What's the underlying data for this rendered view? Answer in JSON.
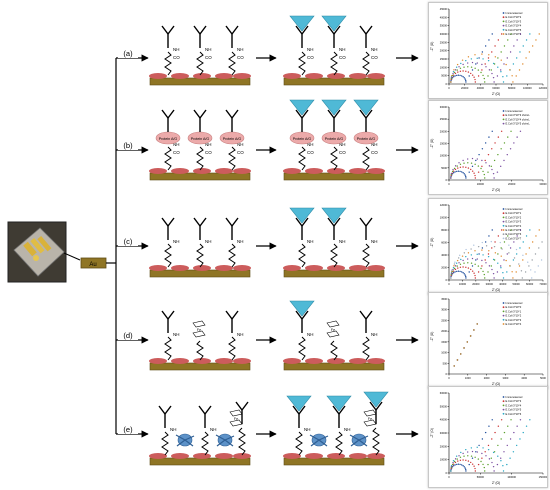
{
  "device": {
    "electrode_label": "Au"
  },
  "rows": [
    {
      "label": "(a)",
      "chem_labels": [
        "NH",
        "CO"
      ],
      "chart": {
        "type": "scatter",
        "xlabel": "Z' (Ω)",
        "ylabel": "-Z'' (Ω)",
        "xticks": [
          "0",
          "20000",
          "40000",
          "60000",
          "80000",
          "100000",
          "120000"
        ],
        "yticks": [
          "0",
          "5000",
          "10000",
          "15000",
          "20000",
          "25000",
          "30000",
          "35000",
          "40000",
          "45000"
        ],
        "legend": [
          "Immunosensor",
          "E.Coli 3*10^2",
          "E.Coli 3*10^3",
          "E.Coli 3*10^4",
          "E.Coli 3*10^5",
          "E.Coli 3*10^6"
        ]
      }
    },
    {
      "label": "(b)",
      "chem_labels": [
        "NH",
        "CO"
      ],
      "protein_label": "Protein A/G",
      "chart": {
        "type": "scatter",
        "xlabel": "Z' (Ω)",
        "ylabel": "-Z'' (Ω)",
        "xticks": [
          "0",
          "10000",
          "20000",
          "30000"
        ],
        "yticks": [
          "0",
          "5000",
          "10000",
          "15000",
          "20000",
          "25000",
          "30000"
        ],
        "legend": [
          "Immunosensor",
          "E.Coli 3*10^3 cfu/mL",
          "E.Coli 3*10^4 cfu/mL",
          "E.Coli 3*10^5 cfu/mL"
        ]
      }
    },
    {
      "label": "(c)",
      "chem_labels": [
        "NH"
      ],
      "chart": {
        "type": "scatter",
        "xlabel": "Z' (Ω)",
        "ylabel": "-Z'' (Ω)",
        "xticks": [
          "0",
          "10000",
          "20000",
          "30000",
          "40000",
          "50000",
          "60000",
          "70000"
        ],
        "yticks": [
          "0",
          "2000",
          "4000",
          "6000",
          "8000",
          "10000",
          "12000"
        ],
        "legend": [
          "Immunosensor",
          "E.Coli 3*10^1",
          "E.Coli 3*10^2",
          "E.Coli 3*10^3",
          "E.Coli 3*10^4",
          "E.Coli 3*10^5",
          "E.Coli 3*10^6",
          "E.Coli 3*10^7"
        ]
      }
    },
    {
      "label": "(d)",
      "chem_labels": [
        "NH",
        "Fe"
      ],
      "chart": {
        "type": "scatter",
        "xlabel": "Z' (Ω)",
        "ylabel": "-Z'' (Ω)",
        "xticks": [
          "0",
          "1000",
          "2000",
          "3000",
          "4000",
          "5000"
        ],
        "yticks": [
          "0",
          "500",
          "1000",
          "1500",
          "2000",
          "2500",
          "3000",
          "3500"
        ],
        "legend": [
          "Immunosensor",
          "E.Coli 3*10^0",
          "E.Coli 3*10^1",
          "E.Coli 3*10^2",
          "E.Coli 3*10^3",
          "E.Coli 3*10^4"
        ]
      }
    },
    {
      "label": "(e)",
      "chem_labels": [
        "NH",
        "Fe"
      ],
      "chart": {
        "type": "scatter",
        "xlabel": "Z' (Ω)",
        "ylabel": "-Z'' (Ω)",
        "xticks": [
          "0",
          "50000",
          "100000",
          "150000"
        ],
        "yticks": [
          "0",
          "10000",
          "20000",
          "30000",
          "40000",
          "50000",
          "60000"
        ],
        "legend": [
          "Immunosensor",
          "E.Coli 3*10^3",
          "E.Coli 3*10^4",
          "E.Coli 3*10^5",
          "E.Coli 3*10^6"
        ]
      }
    }
  ],
  "colors": {
    "gold_substrate": "#8f7525",
    "gold_edge": "#5e4c14",
    "nanoparticle": "#cc5c5c",
    "protein": "#ecaaaa",
    "antigen": "#4fb9d6",
    "aptamer_blob": "#5d92c8",
    "series": [
      "#1f4e9c",
      "#cc3333",
      "#5aa02c",
      "#7a4ea0",
      "#2aa8c4",
      "#e08a2c",
      "#9aa0a6",
      "#b0c4de"
    ]
  }
}
